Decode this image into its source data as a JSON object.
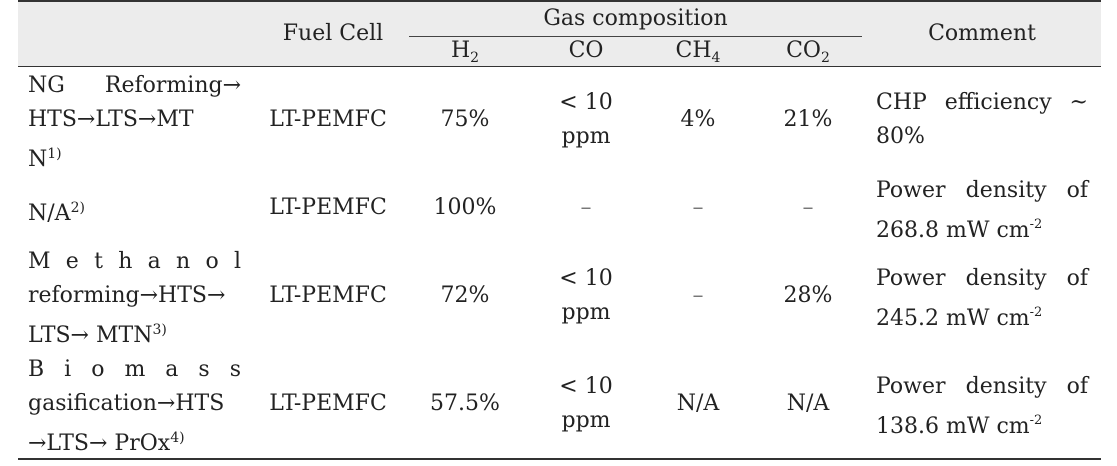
{
  "header": {
    "fuel_cell": "Fuel Cell",
    "gas_composition": "Gas composition",
    "h2_base": "H",
    "h2_sub": "2",
    "co": "CO",
    "ch4_base": "CH",
    "ch4_sub": "4",
    "co2_base": "CO",
    "co2_sub": "2",
    "comment": "Comment"
  },
  "rows": [
    {
      "process_lines": [
        "NG Reforming→",
        "HTS→LTS→MT"
      ],
      "process_last": "N",
      "footnote": "1)",
      "fuel_cell": "LT-PEMFC",
      "h2": "75%",
      "co_line1": "< 10",
      "co_line2": "ppm",
      "ch4": "4%",
      "co2": "21%",
      "comment_line1": "CHP efficiency ~",
      "comment_line2": "80%"
    },
    {
      "process_last": "N/A",
      "footnote": "2)",
      "fuel_cell": "LT-PEMFC",
      "h2": "100%",
      "co_line1": "–",
      "ch4": "–",
      "co2": "–",
      "comment_line1": "Power density of",
      "comment_line2": "268.8 mW cm",
      "comment_exp": "-2"
    },
    {
      "process_lines": [
        "M e t h a n o l",
        "reforming→HTS→"
      ],
      "process_last": "LTS→ MTN",
      "footnote": "3)",
      "fuel_cell": "LT-PEMFC",
      "h2": "72%",
      "co_line1": "< 10",
      "co_line2": "ppm",
      "ch4": "–",
      "co2": "28%",
      "comment_line1": "Power density of",
      "comment_line2": "245.2 mW cm",
      "comment_exp": "-2"
    },
    {
      "process_lines": [
        "B i o m a s s",
        "gasification→HTS"
      ],
      "process_last": "→LTS→ PrOx",
      "footnote": "4)",
      "fuel_cell": "LT-PEMFC",
      "h2": "57.5%",
      "co_line1": "< 10",
      "co_line2": "ppm",
      "ch4": "N/A",
      "co2": "N/A",
      "comment_line1": "Power density of",
      "comment_line2": "138.6 mW cm",
      "comment_exp": "-2"
    }
  ]
}
